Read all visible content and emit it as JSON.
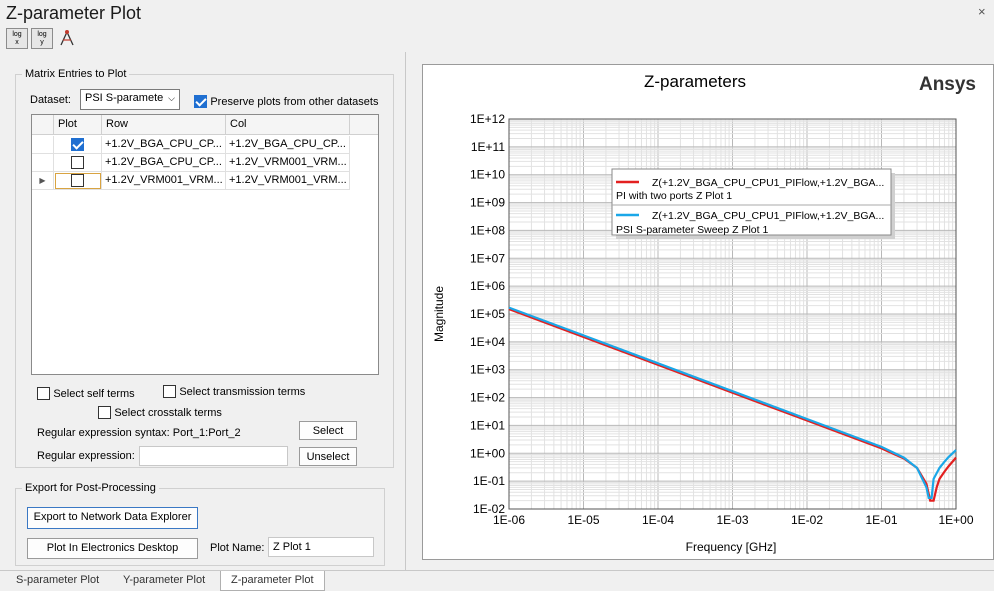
{
  "window": {
    "title": "Z-parameter Plot",
    "close_glyph": "×"
  },
  "toolbar": {
    "logx_top": "log",
    "logx_bottom": "x",
    "logy_top": "log",
    "logy_bottom": "y",
    "markers_icon": "marker-tool-icon"
  },
  "matrix": {
    "group_label": "Matrix Entries to Plot",
    "dataset_label": "Dataset:",
    "dataset_value": "PSI S-paramete",
    "preserve_label": "Preserve plots from other datasets",
    "preserve_checked": true,
    "columns": [
      "Plot",
      "Row",
      "Col"
    ],
    "rows": [
      {
        "checked": true,
        "row": "+1.2V_BGA_CPU_CP...",
        "col": "+1.2V_BGA_CPU_CP..."
      },
      {
        "checked": false,
        "row": "+1.2V_BGA_CPU_CP...",
        "col": "+1.2V_VRM001_VRM..."
      },
      {
        "checked": false,
        "row": "+1.2V_VRM001_VRM...",
        "col": "+1.2V_VRM001_VRM...",
        "current": true
      }
    ],
    "select_self": "Select self terms",
    "select_transmission": "Select transmission terms",
    "select_crosstalk": "Select crosstalk terms",
    "regex_syntax": "Regular expression syntax: Port_1:Port_2",
    "regex_label": "Regular expression:",
    "regex_value": "",
    "select_button": "Select",
    "unselect_button": "Unselect"
  },
  "export": {
    "group_label": "Export for Post-Processing",
    "export_button": "Export to Network Data Explorer",
    "plot_button": "Plot In Electronics Desktop",
    "plot_name_label": "Plot Name:",
    "plot_name_value": "Z Plot 1"
  },
  "tabs": [
    {
      "label": "S-parameter Plot",
      "active": false
    },
    {
      "label": "Y-parameter Plot",
      "active": false
    },
    {
      "label": "Z-parameter Plot",
      "active": true
    }
  ],
  "chart_data": {
    "type": "line",
    "title": "Z-parameters",
    "brand": "Ansys",
    "xlabel": "Frequency [GHz]",
    "ylabel": "Magnitude",
    "xscale": "log",
    "yscale": "log",
    "xlim": [
      1e-06,
      1
    ],
    "ylim": [
      0.01,
      1000000000000.0
    ],
    "x_tick_labels": [
      "1E-06",
      "1E-05",
      "1E-04",
      "1E-03",
      "1E-02",
      "1E-01",
      "1E+00"
    ],
    "y_tick_labels": [
      "1E-02",
      "1E-01",
      "1E+00",
      "1E+01",
      "1E+02",
      "1E+03",
      "1E+04",
      "1E+05",
      "1E+06",
      "1E+07",
      "1E+08",
      "1E+09",
      "1E+10",
      "1E+11",
      "1E+12"
    ],
    "grid": true,
    "legend_position": "top-center",
    "series": [
      {
        "name": "Z(+1.2V_BGA_CPU_CPU1_PIFlow,+1.2V_BGA...",
        "subtitle": "PI with two ports Z Plot 1",
        "color": "#e32020",
        "x": [
          1e-06,
          1e-05,
          0.0001,
          0.001,
          0.01,
          0.1,
          0.2,
          0.3,
          0.4,
          0.45,
          0.5,
          0.55,
          0.6,
          0.7,
          0.8,
          1.0
        ],
        "y": [
          150000,
          15000,
          1500,
          150,
          15,
          1.5,
          0.65,
          0.3,
          0.08,
          0.02,
          0.02,
          0.06,
          0.12,
          0.22,
          0.35,
          0.7
        ]
      },
      {
        "name": "Z(+1.2V_BGA_CPU_CPU1_PIFlow,+1.2V_BGA...",
        "subtitle": "PSI S-parameter Sweep Z Plot 1",
        "color": "#1aa7e8",
        "x": [
          1e-06,
          1e-05,
          0.0001,
          0.001,
          0.01,
          0.1,
          0.2,
          0.3,
          0.4,
          0.43,
          0.47,
          0.5,
          0.6,
          0.7,
          0.8,
          1.0
        ],
        "y": [
          170000,
          17000,
          1700,
          170,
          17,
          1.7,
          0.7,
          0.3,
          0.06,
          0.025,
          0.025,
          0.12,
          0.3,
          0.5,
          0.75,
          1.3
        ]
      }
    ]
  }
}
